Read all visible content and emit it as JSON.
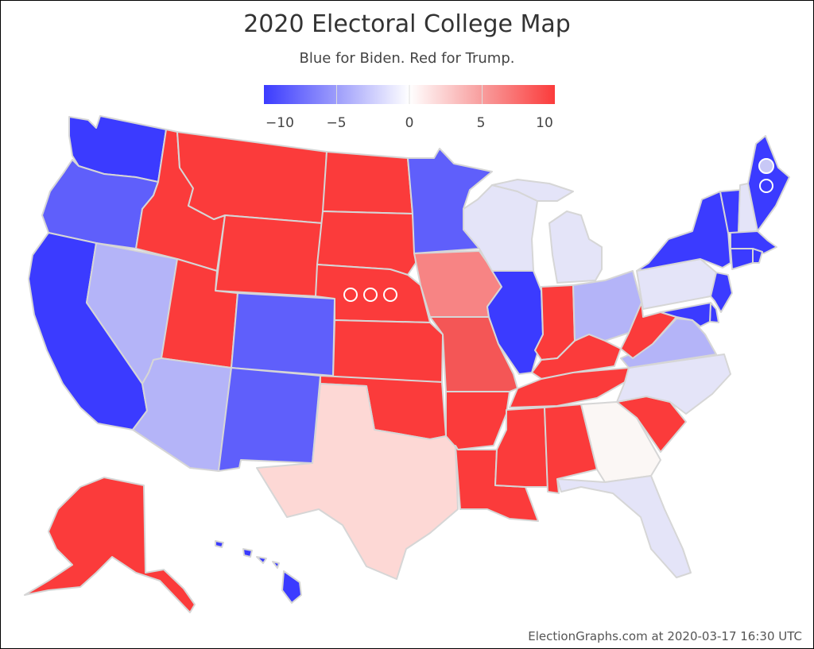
{
  "title": "2020 Electoral College Map",
  "subtitle": "Blue for Biden. Red for Trump.",
  "scale": {
    "min": -10,
    "max": 10,
    "ticks": [
      "−10",
      "−5",
      "0",
      "5",
      "10"
    ],
    "tick_values": [
      -10,
      -5,
      0,
      5,
      10
    ]
  },
  "colors": {
    "strong_biden": "#3b3bff",
    "lean_biden": "#5f5ffb",
    "light_biden": "#b4b4f8",
    "pale_biden": "#e4e4f8",
    "neutral": "#fbf7f5",
    "pale_trump": "#fdd8d5",
    "light_trump": "#f78484",
    "lean_trump": "#f45656",
    "strong_trump": "#fb3b3b"
  },
  "states": [
    {
      "name": "Washington",
      "category": "strong_biden"
    },
    {
      "name": "Oregon",
      "category": "lean_biden"
    },
    {
      "name": "California",
      "category": "strong_biden"
    },
    {
      "name": "Nevada",
      "category": "light_biden"
    },
    {
      "name": "Idaho",
      "category": "strong_trump"
    },
    {
      "name": "Montana",
      "category": "strong_trump"
    },
    {
      "name": "Wyoming",
      "category": "strong_trump"
    },
    {
      "name": "Utah",
      "category": "strong_trump"
    },
    {
      "name": "Arizona",
      "category": "light_biden"
    },
    {
      "name": "Colorado",
      "category": "lean_biden"
    },
    {
      "name": "New Mexico",
      "category": "lean_biden"
    },
    {
      "name": "North Dakota",
      "category": "strong_trump"
    },
    {
      "name": "South Dakota",
      "category": "strong_trump"
    },
    {
      "name": "Nebraska",
      "category": "strong_trump"
    },
    {
      "name": "Kansas",
      "category": "strong_trump"
    },
    {
      "name": "Oklahoma",
      "category": "strong_trump"
    },
    {
      "name": "Texas",
      "category": "pale_trump"
    },
    {
      "name": "Minnesota",
      "category": "lean_biden"
    },
    {
      "name": "Iowa",
      "category": "light_trump"
    },
    {
      "name": "Missouri",
      "category": "lean_trump"
    },
    {
      "name": "Arkansas",
      "category": "strong_trump"
    },
    {
      "name": "Louisiana",
      "category": "strong_trump"
    },
    {
      "name": "Wisconsin",
      "category": "pale_biden"
    },
    {
      "name": "Illinois",
      "category": "strong_biden"
    },
    {
      "name": "Michigan",
      "category": "pale_biden"
    },
    {
      "name": "Indiana",
      "category": "strong_trump"
    },
    {
      "name": "Ohio",
      "category": "light_biden"
    },
    {
      "name": "Kentucky",
      "category": "strong_trump"
    },
    {
      "name": "Tennessee",
      "category": "strong_trump"
    },
    {
      "name": "Mississippi",
      "category": "strong_trump"
    },
    {
      "name": "Alabama",
      "category": "strong_trump"
    },
    {
      "name": "Georgia",
      "category": "neutral"
    },
    {
      "name": "Florida",
      "category": "pale_biden"
    },
    {
      "name": "South Carolina",
      "category": "strong_trump"
    },
    {
      "name": "North Carolina",
      "category": "pale_biden"
    },
    {
      "name": "Virginia",
      "category": "light_biden"
    },
    {
      "name": "West Virginia",
      "category": "strong_trump"
    },
    {
      "name": "Pennsylvania",
      "category": "pale_biden"
    },
    {
      "name": "New York",
      "category": "strong_biden"
    },
    {
      "name": "Vermont",
      "category": "strong_biden"
    },
    {
      "name": "New Hampshire",
      "category": "pale_biden"
    },
    {
      "name": "Maine",
      "category": "strong_biden"
    },
    {
      "name": "Massachusetts",
      "category": "strong_biden"
    },
    {
      "name": "Connecticut",
      "category": "strong_biden"
    },
    {
      "name": "Rhode Island",
      "category": "strong_biden"
    },
    {
      "name": "New Jersey",
      "category": "strong_biden"
    },
    {
      "name": "Delaware",
      "category": "strong_biden"
    },
    {
      "name": "Maryland",
      "category": "strong_biden"
    },
    {
      "name": "Alaska",
      "category": "strong_trump"
    },
    {
      "name": "Hawaii",
      "category": "strong_biden"
    }
  ],
  "footer": "ElectionGraphs.com at 2020-03-17 16:30 UTC"
}
